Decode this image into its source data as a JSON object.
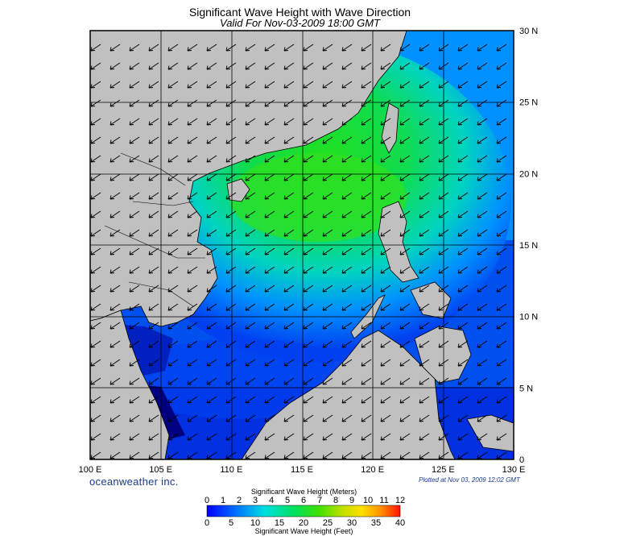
{
  "title": "Significant Wave Height with Wave Direction",
  "subtitle": "Valid For Nov-03-2009 18:00 GMT",
  "credit": "oceanweather inc.",
  "plotted": "Plotted at Nov 03, 2009 12:02 GMT",
  "lon_labels": [
    "100 E",
    "105 E",
    "110 E",
    "115 E",
    "120 E",
    "125 E",
    "130 E"
  ],
  "lat_labels": [
    "30 N",
    "25 N",
    "20 N",
    "15 N",
    "10 N",
    "5 N",
    "0"
  ],
  "colorbar": {
    "meters_title": "Significant Wave Height (Meters)",
    "feet_title": "Significant Wave Height (Feet)",
    "meters_ticks": [
      "0",
      "1",
      "2",
      "3",
      "4",
      "5",
      "6",
      "7",
      "8",
      "9",
      "10",
      "11",
      "12"
    ],
    "feet_ticks": [
      "0",
      "5",
      "10",
      "15",
      "20",
      "25",
      "30",
      "35",
      "40"
    ],
    "colors": [
      "#0000ff",
      "#0040ff",
      "#0080ff",
      "#00c0ff",
      "#00e0d0",
      "#00e080",
      "#20e020",
      "#80e000",
      "#c0e000",
      "#ffe000",
      "#ffb000",
      "#ff6000",
      "#ff2000"
    ]
  },
  "chart_data": {
    "type": "heatmap",
    "variable": "significant wave height (m) with mean wave direction",
    "lon_range": [
      100,
      130
    ],
    "lat_range": [
      0,
      30
    ],
    "wave_direction": "from northeast toward southwest",
    "value_range_m": [
      0,
      12
    ],
    "max_region": "central South China Sea near 18-20 N, 112-121 E, about 5-6 m"
  }
}
